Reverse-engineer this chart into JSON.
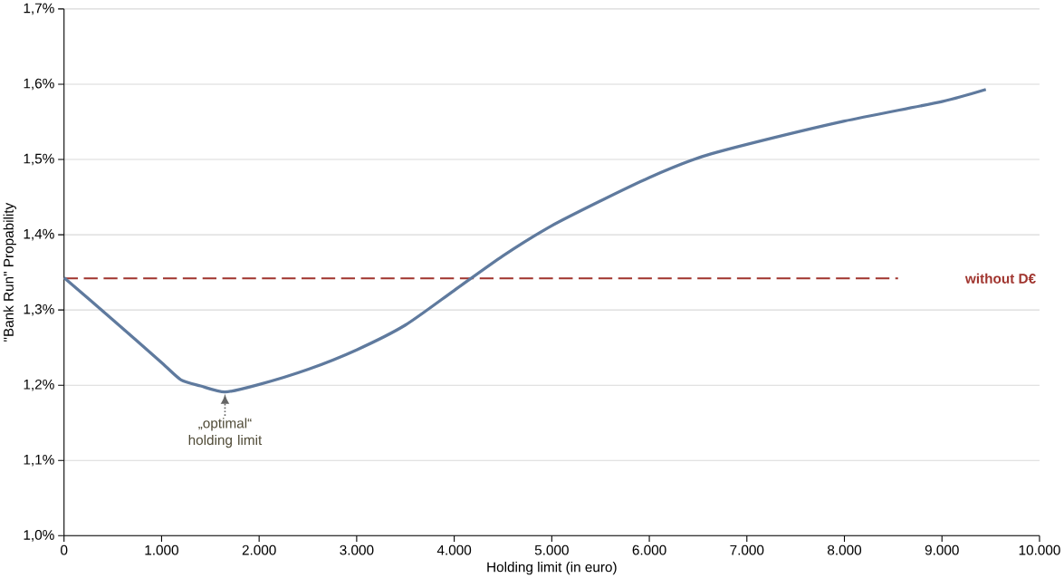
{
  "chart_data": {
    "type": "line",
    "xlabel": "Holding limit (in euro)",
    "ylabel": "\"Bank Run\" Propability",
    "x": [
      0,
      500,
      1000,
      1200,
      1400,
      1650,
      2000,
      2500,
      3000,
      3500,
      4000,
      4500,
      5000,
      5500,
      6000,
      6500,
      7000,
      8000,
      9000,
      9450
    ],
    "series": [
      {
        "color": "#5f7a9e",
        "values": [
          1.343,
          1.287,
          1.23,
          1.207,
          1.199,
          1.191,
          1.201,
          1.221,
          1.247,
          1.28,
          1.326,
          1.372,
          1.412,
          1.445,
          1.476,
          1.502,
          1.52,
          1.551,
          1.577,
          1.593
        ]
      }
    ],
    "xlim": [
      0,
      10000
    ],
    "xticks": [
      0,
      {
        "value": 1000,
        "label": "1.000"
      },
      {
        "value": 2000,
        "label": "2.000"
      },
      {
        "value": 3000,
        "label": "3.000"
      },
      {
        "value": 4000,
        "label": "4.000"
      },
      {
        "value": 5000,
        "label": "5.000"
      },
      {
        "value": 6000,
        "label": "6.000"
      },
      {
        "value": 7000,
        "label": "7.000"
      },
      {
        "value": 8000,
        "label": "8.000"
      },
      {
        "value": 9000,
        "label": "9.000"
      },
      {
        "value": 10000,
        "label": "10.000"
      }
    ],
    "ylim": [
      1.0,
      1.7
    ],
    "yticks": [
      {
        "value": 1.0,
        "label": "1,0%"
      },
      {
        "value": 1.1,
        "label": "1,1%"
      },
      {
        "value": 1.2,
        "label": "1,2%"
      },
      {
        "value": 1.3,
        "label": "1,3%"
      },
      {
        "value": 1.4,
        "label": "1,4%"
      },
      {
        "value": 1.5,
        "label": "1,5%"
      },
      {
        "value": 1.6,
        "label": "1,6%"
      },
      {
        "value": 1.7,
        "label": "1,7%"
      }
    ],
    "grid": "y",
    "ref_lines": [
      {
        "axis": "y",
        "value": 1.342,
        "label": "without D€",
        "color": "#a0342e",
        "line_style": "dashed"
      }
    ],
    "annotations": [
      {
        "text": "„optimal“ holding limit",
        "x": 1650,
        "y": 1.191
      }
    ]
  }
}
